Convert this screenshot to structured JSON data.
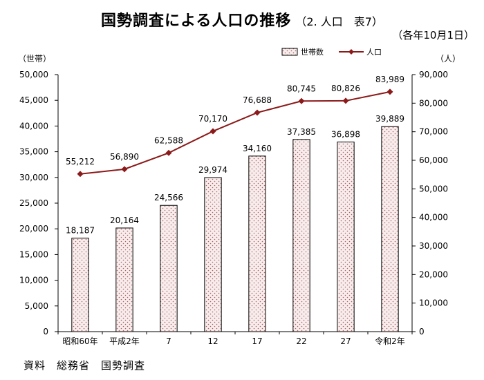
{
  "title": {
    "main": "国勢調査による人口の推移",
    "sub": "（2. 人口　表7）",
    "date_note": "（各年10月1日）"
  },
  "source": "資料　総務省　国勢調査",
  "colors": {
    "bar_fill": "#f7eded",
    "bar_dot": "#b06060",
    "line": "#8b1a1a"
  },
  "chart_data": {
    "type": "bar+line",
    "categories": [
      "昭和60年",
      "平成2年",
      "7",
      "12",
      "17",
      "22",
      "27",
      "令和2年"
    ],
    "series": [
      {
        "name": "世帯数",
        "type": "bar",
        "axis": "left",
        "values": [
          18187,
          20164,
          24566,
          29974,
          34160,
          37385,
          36898,
          39889
        ],
        "labels": [
          "18,187",
          "20,164",
          "24,566",
          "29,974",
          "34,160",
          "37,385",
          "36,898",
          "39,889"
        ]
      },
      {
        "name": "人口",
        "type": "line",
        "axis": "right",
        "values": [
          55212,
          56890,
          62588,
          70170,
          76688,
          80745,
          80826,
          83989
        ],
        "labels": [
          "55,212",
          "56,890",
          "62,588",
          "70,170",
          "76,688",
          "80,745",
          "80,826",
          "83,989"
        ]
      }
    ],
    "y_left": {
      "unit": "（世帯）",
      "ylim": [
        0,
        50000
      ],
      "ticks": [
        "0",
        "5,000",
        "10,000",
        "15,000",
        "20,000",
        "25,000",
        "30,000",
        "35,000",
        "40,000",
        "45,000",
        "50,000"
      ]
    },
    "y_right": {
      "unit": "（人）",
      "ylim": [
        0,
        90000
      ],
      "ticks": [
        "0",
        "10,000",
        "20,000",
        "30,000",
        "40,000",
        "50,000",
        "60,000",
        "70,000",
        "80,000",
        "90,000"
      ]
    },
    "legend_position": "top-right",
    "grid": false
  }
}
